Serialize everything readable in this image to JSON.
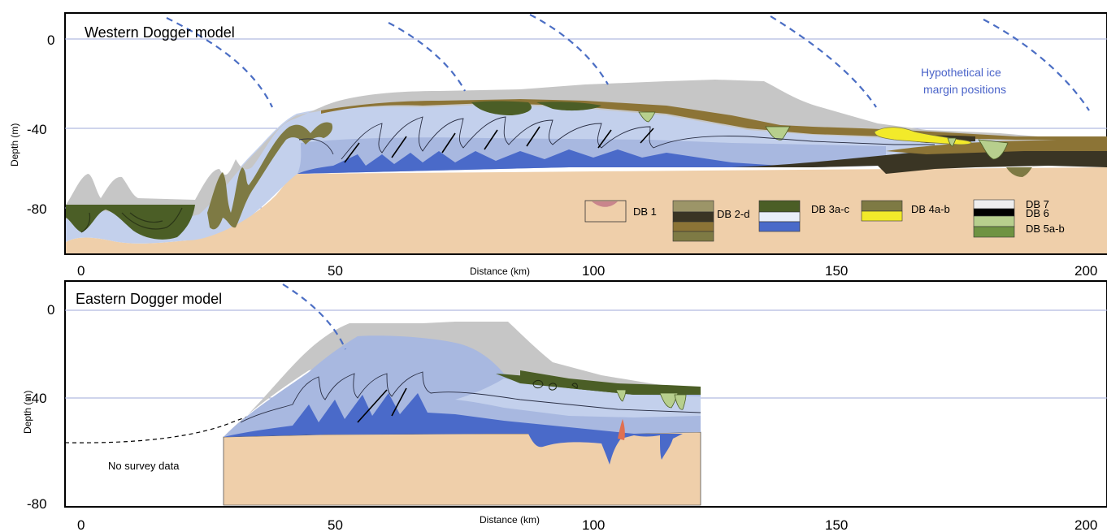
{
  "colors": {
    "basement": "#efcfaa",
    "db3_light": "#c3d0ec",
    "db3_mid": "#a8b8e0",
    "db3_dark": "#4a6ac9",
    "db3_green": "#4b5e26",
    "db2_brown": "#8c7436",
    "db2_dark": "#3a3524",
    "db2_tan": "#9c9568",
    "db4_olive": "#7e7a44",
    "db4_yellow": "#f2ea2a",
    "db5_light": "#b7cf8d",
    "db5_dark": "#6f9342",
    "db7_gray": "#c6c6c6",
    "db1_pink": "#c9858c",
    "ice_margin": "#4b6ec4",
    "gridline": "#9fa8d8"
  },
  "panels": [
    {
      "title": "Western Dogger model",
      "ylabel": "Depth (m)",
      "xlabel": "Distance (km)",
      "yticks": [
        "0",
        "-40",
        "-80"
      ],
      "xticks": [
        "0",
        "50",
        "100",
        "150",
        "200"
      ],
      "annotation": "Hypothetical ice\nmargin positions",
      "annotation_lines": [
        "Hypothetical ice",
        "margin positions"
      ]
    },
    {
      "title": "Eastern Dogger model",
      "ylabel": "Depth (m)",
      "xlabel": "Distance (km)",
      "yticks": [
        "0",
        "-40",
        "-80"
      ],
      "xticks": [
        "0",
        "50",
        "100",
        "150",
        "200"
      ],
      "note": "No survey data"
    }
  ],
  "legend": {
    "db1": "DB 1",
    "db2": "DB 2-d",
    "db3": "DB 3a-c",
    "db4": "DB 4a-b",
    "db7": "DB 7",
    "db6": "DB 6",
    "db5": "DB 5a-b"
  }
}
